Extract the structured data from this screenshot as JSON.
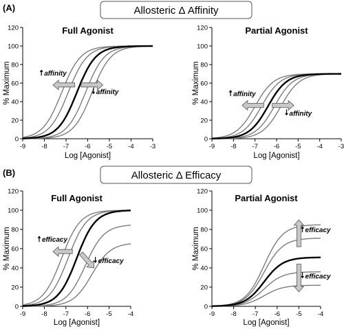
{
  "sections": [
    {
      "label": "(A)",
      "banner": "Allosteric Δ Affinity"
    },
    {
      "label": "(B)",
      "banner": "Allosteric Δ Efficacy"
    }
  ],
  "arrow_color": "#c8c8c8",
  "chart_data": [
    {
      "type": "line",
      "title": "Full Agonist",
      "xlabel": "Log [Agonist]",
      "ylabel": "% Maximum",
      "xlim": [
        -9,
        -3
      ],
      "ylim": [
        0,
        120
      ],
      "xticks": [
        -9,
        -8,
        -7,
        -6,
        -5,
        -4,
        -3
      ],
      "yticks": [
        0,
        20,
        40,
        60,
        80,
        100,
        120
      ],
      "curve_model": "Hill, slope 1",
      "series": [
        {
          "emax": 100,
          "log_ec50": -7.2,
          "emphasis": "gray"
        },
        {
          "emax": 100,
          "log_ec50": -6.9,
          "emphasis": "gray"
        },
        {
          "emax": 100,
          "log_ec50": -6.5,
          "emphasis": "control"
        },
        {
          "emax": 100,
          "log_ec50": -6.1,
          "emphasis": "gray"
        },
        {
          "emax": 100,
          "log_ec50": -5.8,
          "emphasis": "gray"
        }
      ],
      "annotations": [
        {
          "text": "affinity",
          "arrow": "up",
          "x": -8.2,
          "y": 68
        },
        {
          "text": "affinity",
          "arrow": "down",
          "x": -5.8,
          "y": 48
        }
      ],
      "shift_arrows": [
        {
          "direction": "left",
          "x1": -6.6,
          "x2": -7.6,
          "y": 58
        },
        {
          "direction": "right",
          "x1": -6.3,
          "x2": -5.3,
          "y": 58
        }
      ]
    },
    {
      "type": "line",
      "title": "Partial Agonist",
      "xlabel": "Log [Agonist]",
      "ylabel": "% Maximum",
      "xlim": [
        -9,
        -3
      ],
      "ylim": [
        0,
        120
      ],
      "xticks": [
        -9,
        -8,
        -7,
        -6,
        -5,
        -4,
        -3
      ],
      "yticks": [
        0,
        20,
        40,
        60,
        80,
        100,
        120
      ],
      "curve_model": "Hill, slope 1",
      "series": [
        {
          "emax": 70,
          "log_ec50": -7.0,
          "emphasis": "gray"
        },
        {
          "emax": 70,
          "log_ec50": -6.7,
          "emphasis": "gray"
        },
        {
          "emax": 70,
          "log_ec50": -6.4,
          "emphasis": "control"
        },
        {
          "emax": 70,
          "log_ec50": -6.1,
          "emphasis": "gray"
        },
        {
          "emax": 70,
          "log_ec50": -5.8,
          "emphasis": "gray"
        }
      ],
      "annotations": [
        {
          "text": "affinity",
          "arrow": "up",
          "x": -8.2,
          "y": 46
        },
        {
          "text": "affinity",
          "arrow": "down",
          "x": -5.6,
          "y": 25
        }
      ],
      "shift_arrows": [
        {
          "direction": "left",
          "x1": -6.6,
          "x2": -7.6,
          "y": 36
        },
        {
          "direction": "right",
          "x1": -6.2,
          "x2": -5.2,
          "y": 36
        }
      ]
    },
    {
      "type": "line",
      "title": "Full Agonist",
      "xlabel": "Log [Agonist]",
      "ylabel": "% Maximum",
      "xlim": [
        -9,
        -4
      ],
      "ylim": [
        0,
        120
      ],
      "xticks": [
        -9,
        -8,
        -7,
        -6,
        -5,
        -4
      ],
      "yticks": [
        0,
        20,
        40,
        60,
        80,
        100,
        120
      ],
      "curve_model": "Hill, slope 1",
      "series": [
        {
          "emax": 100,
          "log_ec50": -7.2,
          "emphasis": "gray"
        },
        {
          "emax": 100,
          "log_ec50": -6.9,
          "emphasis": "gray"
        },
        {
          "emax": 100,
          "log_ec50": -6.5,
          "emphasis": "control"
        },
        {
          "emax": 85,
          "log_ec50": -6.1,
          "emphasis": "gray"
        },
        {
          "emax": 66,
          "log_ec50": -5.8,
          "emphasis": "gray"
        }
      ],
      "annotations": [
        {
          "text": "efficacy",
          "arrow": "up",
          "x": -8.3,
          "y": 67
        },
        {
          "text": "efficacy",
          "arrow": "down",
          "x": -5.7,
          "y": 45
        }
      ],
      "shift_arrows": [
        {
          "direction": "left",
          "x1": -6.7,
          "x2": -7.6,
          "y": 57
        },
        {
          "direction": "down-right",
          "x1": -6.3,
          "y1": 55,
          "x2": -5.7,
          "y2": 40
        }
      ]
    },
    {
      "type": "line",
      "title": "Partial Agonist",
      "xlabel": "Log [Agonist]",
      "ylabel": "% Maximum",
      "xlim": [
        -9,
        -4
      ],
      "ylim": [
        0,
        120
      ],
      "xticks": [
        -9,
        -8,
        -7,
        -6,
        -5,
        -4
      ],
      "yticks": [
        0,
        20,
        40,
        60,
        80,
        100,
        120
      ],
      "curve_model": "Hill, slope 1",
      "series": [
        {
          "emax": 85,
          "log_ec50": -6.6,
          "emphasis": "gray"
        },
        {
          "emax": 71,
          "log_ec50": -6.6,
          "emphasis": "gray"
        },
        {
          "emax": 51,
          "log_ec50": -6.6,
          "emphasis": "control"
        },
        {
          "emax": 36,
          "log_ec50": -6.6,
          "emphasis": "gray"
        },
        {
          "emax": 22,
          "log_ec50": -6.6,
          "emphasis": "gray"
        }
      ],
      "annotations": [
        {
          "text": "efficacy",
          "arrow": "up",
          "x": -4.9,
          "y": 77
        },
        {
          "text": "efficacy",
          "arrow": "down",
          "x": -4.9,
          "y": 29
        }
      ],
      "shift_arrows": [
        {
          "direction": "up",
          "x": -5.0,
          "y1": 62,
          "y2": 90
        },
        {
          "direction": "down",
          "x": -5.0,
          "y1": 44,
          "y2": 15
        }
      ]
    }
  ]
}
